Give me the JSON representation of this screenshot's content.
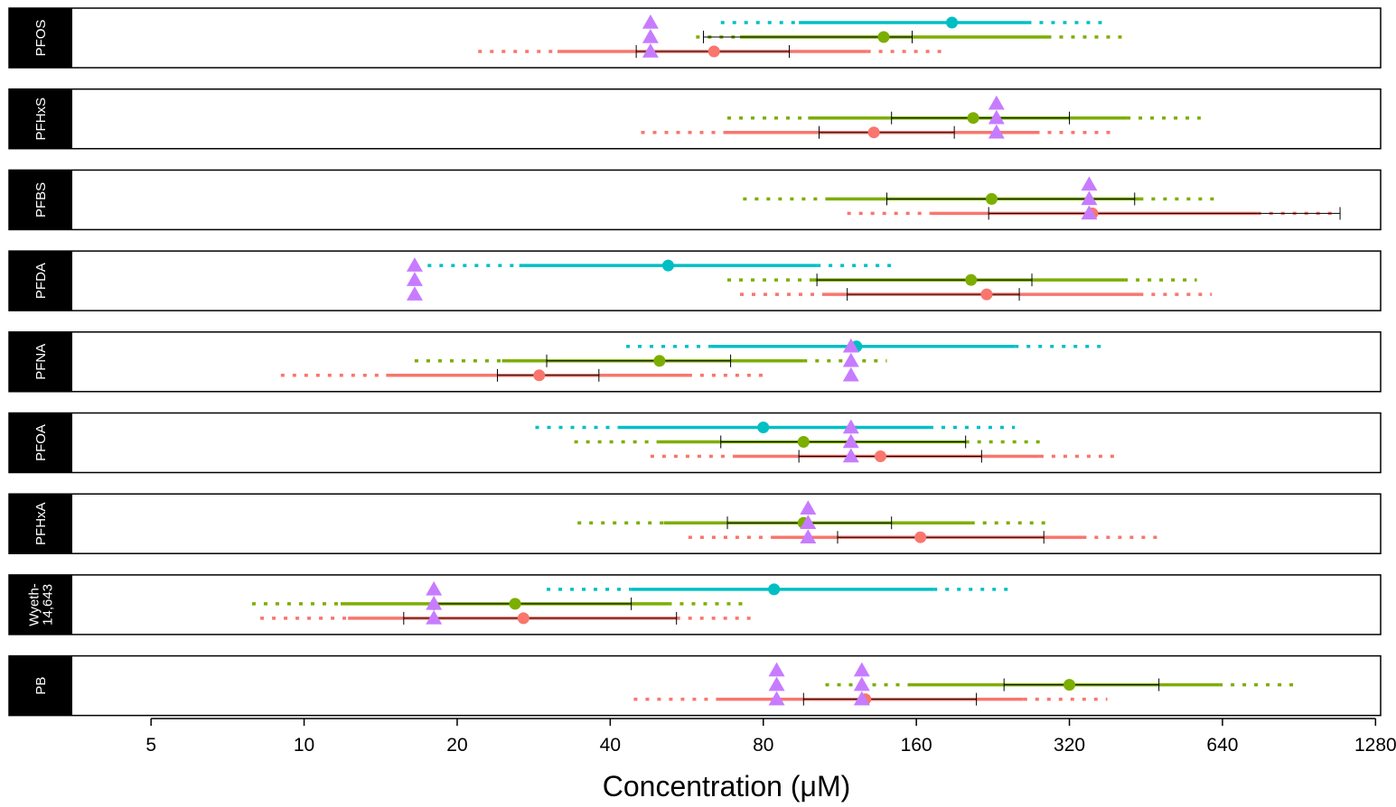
{
  "chart_data": {
    "type": "interval",
    "xlabel": "Concentration (μM)",
    "x_scale": "log2",
    "xlim": [
      3.5,
      1310
    ],
    "x_ticks": [
      5,
      10,
      20,
      40,
      80,
      160,
      320,
      640,
      1280
    ],
    "x_tick_labels": [
      "5",
      "10",
      "20",
      "40",
      "80",
      "160",
      "320",
      "640",
      "1280"
    ],
    "colors": {
      "cyan": "#00bfc4",
      "green": "#7cae00",
      "red": "#f8766d",
      "triangle": "#c77cff",
      "strip": "#000000",
      "ci": "#000000"
    },
    "panels": [
      {
        "label_lines": [
          "PFOS"
        ],
        "intervals": [
          {
            "color": "cyan",
            "row": 0,
            "outer": [
              66,
              380
            ],
            "inner": [
              94,
              265
            ],
            "point": 188
          },
          {
            "color": "green",
            "row": 1,
            "outer": [
              59,
              410
            ],
            "inner": [
              72,
              290
            ],
            "point": 138,
            "ci": [
              61,
              157
            ]
          },
          {
            "color": "red",
            "row": 2,
            "outer": [
              22,
              182
            ],
            "inner": [
              31.5,
              128
            ],
            "point": 64,
            "ci": [
              45,
              90
            ]
          }
        ],
        "triangles": [
          {
            "x": 48,
            "rows": [
              0,
              1,
              2
            ]
          }
        ]
      },
      {
        "label_lines": [
          "PFHxS"
        ],
        "intervals": [
          {
            "color": "green",
            "row": 1,
            "outer": [
              68,
              580
            ],
            "inner": [
              98,
              415
            ],
            "point": 207,
            "ci": [
              143,
              320
            ]
          },
          {
            "color": "red",
            "row": 2,
            "outer": [
              46,
              395
            ],
            "inner": [
              67,
              275
            ],
            "point": 132,
            "ci": [
              103,
              190
            ]
          }
        ],
        "triangles": [
          {
            "x": 230,
            "rows": [
              0,
              1,
              2
            ]
          }
        ]
      },
      {
        "label_lines": [
          "PFBS"
        ],
        "intervals": [
          {
            "color": "green",
            "row": 1,
            "outer": [
              73,
              620
            ],
            "inner": [
              106,
              440
            ],
            "point": 225,
            "ci": [
              140,
              430
            ]
          },
          {
            "color": "red",
            "row": 2,
            "outer": [
              117,
              1080
            ],
            "inner": [
              171,
              750
            ],
            "point": 355,
            "ci": [
              222,
              1090
            ]
          }
        ],
        "triangles": [
          {
            "x": 350,
            "rows": [
              0,
              1,
              2
            ]
          }
        ]
      },
      {
        "label_lines": [
          "PFDA"
        ],
        "intervals": [
          {
            "color": "cyan",
            "row": 0,
            "outer": [
              17.5,
              148
            ],
            "inner": [
              26.5,
              102
            ],
            "point": 52
          },
          {
            "color": "green",
            "row": 1,
            "outer": [
              68,
              570
            ],
            "inner": [
              100,
              410
            ],
            "point": 205,
            "ci": [
              102,
              270
            ]
          },
          {
            "color": "red",
            "row": 2,
            "outer": [
              72,
              610
            ],
            "inner": [
              106,
              440
            ],
            "point": 220,
            "ci": [
              117,
              255
            ]
          }
        ],
        "triangles": [
          {
            "x": 16.5,
            "rows": [
              0,
              1,
              2
            ]
          }
        ]
      },
      {
        "label_lines": [
          "PFNA"
        ],
        "intervals": [
          {
            "color": "cyan",
            "row": 0,
            "outer": [
              43,
              370
            ],
            "inner": [
              63,
              250
            ],
            "point": 122
          },
          {
            "color": "green",
            "row": 1,
            "outer": [
              16.5,
              140
            ],
            "inner": [
              24.5,
              96
            ],
            "point": 50,
            "ci": [
              30,
              69
            ]
          },
          {
            "color": "red",
            "row": 2,
            "outer": [
              9,
              82
            ],
            "inner": [
              14.5,
              57
            ],
            "point": 29,
            "ci": [
              24,
              38
            ]
          }
        ],
        "triangles": [
          {
            "x": 119,
            "rows": [
              0,
              1,
              2
            ]
          }
        ]
      },
      {
        "label_lines": [
          "PFOA"
        ],
        "intervals": [
          {
            "color": "cyan",
            "row": 0,
            "outer": [
              28.5,
              250
            ],
            "inner": [
              41.5,
              170
            ],
            "point": 80
          },
          {
            "color": "green",
            "row": 1,
            "outer": [
              34,
              290
            ],
            "inner": [
              50,
              200
            ],
            "point": 96,
            "ci": [
              66,
              200
            ]
          },
          {
            "color": "red",
            "row": 2,
            "outer": [
              48,
              400
            ],
            "inner": [
              70,
              280
            ],
            "point": 136,
            "ci": [
              94,
              215
            ]
          }
        ],
        "triangles": [
          {
            "x": 119,
            "rows": [
              0,
              1,
              2
            ]
          }
        ]
      },
      {
        "label_lines": [
          "PFHxA"
        ],
        "intervals": [
          {
            "color": "green",
            "row": 1,
            "outer": [
              34.5,
              295
            ],
            "inner": [
              51,
              205
            ],
            "point": 96,
            "ci": [
              68,
              143
            ]
          },
          {
            "color": "red",
            "row": 2,
            "outer": [
              57,
              480
            ],
            "inner": [
              83,
              340
            ],
            "point": 163,
            "ci": [
              112,
              285
            ]
          }
        ],
        "triangles": [
          {
            "x": 98,
            "rows": [
              0,
              1,
              2
            ]
          }
        ]
      },
      {
        "label_lines": [
          "Wyeth-",
          "14,643"
        ],
        "intervals": [
          {
            "color": "cyan",
            "row": 0,
            "outer": [
              30,
              250
            ],
            "inner": [
              44,
              173
            ],
            "point": 84
          },
          {
            "color": "green",
            "row": 1,
            "outer": [
              7.9,
              75
            ],
            "inner": [
              11.8,
              52
            ],
            "point": 26,
            "ci": [
              18,
              44
            ]
          },
          {
            "color": "red",
            "row": 2,
            "outer": [
              8.2,
              78
            ],
            "inner": [
              12.2,
              54
            ],
            "point": 27,
            "ci": [
              15.7,
              54
            ]
          }
        ],
        "triangles": [
          {
            "x": 18,
            "rows": [
              0,
              1,
              2
            ]
          }
        ]
      },
      {
        "label_lines": [
          "PB"
        ],
        "intervals": [
          {
            "color": "green",
            "row": 1,
            "outer": [
              106,
              900
            ],
            "inner": [
              156,
              630
            ],
            "point": 320,
            "ci": [
              238,
              480
            ]
          },
          {
            "color": "red",
            "row": 2,
            "outer": [
              44.5,
              380
            ],
            "inner": [
              65,
              260
            ],
            "point": 127,
            "ci": [
              96,
              210
            ]
          }
        ],
        "triangles": [
          {
            "x": 85,
            "rows": [
              0,
              1,
              2
            ]
          },
          {
            "x": 125,
            "rows": [
              0,
              1,
              2
            ]
          }
        ]
      }
    ]
  }
}
